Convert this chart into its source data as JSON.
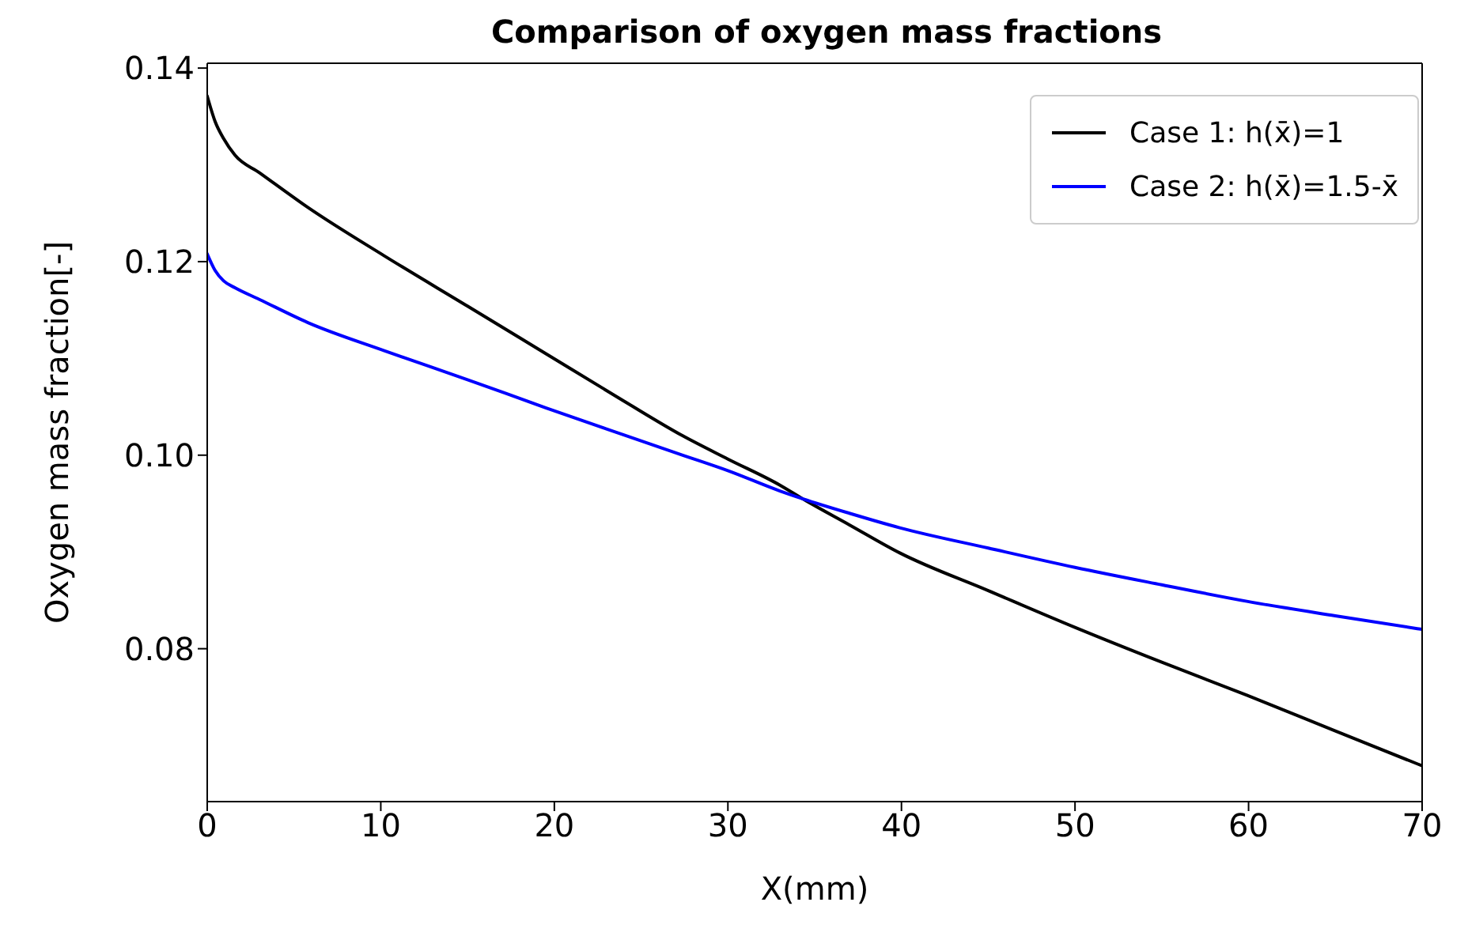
{
  "chart_data": {
    "type": "line",
    "title": "Comparison of oxygen mass fractions",
    "xlabel": "X(mm)",
    "ylabel": "Oxygen mass fraction[-]",
    "x": [
      0,
      0.45,
      0.95,
      1.6,
      3,
      5.8,
      10.2,
      15,
      19.5,
      24,
      27.4,
      30,
      33,
      34.3,
      37,
      39.9,
      45,
      50,
      55,
      59.9,
      65,
      70
    ],
    "series": [
      {
        "name": "Case 1: h(x̄)=1",
        "color": "#000000",
        "values": [
          0.1371,
          0.1345,
          0.1327,
          0.131,
          0.1292,
          0.1256,
          0.1206,
          0.1154,
          0.1105,
          0.1056,
          0.102,
          0.0996,
          0.0969,
          0.0955,
          0.0928,
          0.0899,
          0.086,
          0.0822,
          0.0786,
          0.0752,
          0.0715,
          0.0679
        ]
      },
      {
        "name": "Case 2: h(x̄)=1.5-x̄",
        "color": "#0000ff",
        "values": [
          0.1208,
          0.1191,
          0.118,
          0.1173,
          0.1161,
          0.1137,
          0.1108,
          0.1078,
          0.1049,
          0.1021,
          0.1,
          0.0984,
          0.0963,
          0.0955,
          0.094,
          0.0925,
          0.0904,
          0.0884,
          0.0866,
          0.0849,
          0.0834,
          0.082
        ]
      }
    ],
    "xlim": [
      0,
      70
    ],
    "xticks": [
      0,
      10,
      20,
      30,
      40,
      50,
      60,
      70
    ],
    "ylim": [
      0.0642,
      0.1405
    ],
    "yticks": [
      0.08,
      {
        "value": 0.1,
        "label": "0.10"
      },
      0.12,
      0.14
    ],
    "grid": false,
    "legend": "top right",
    "marker": "none",
    "line_style": "solid"
  }
}
